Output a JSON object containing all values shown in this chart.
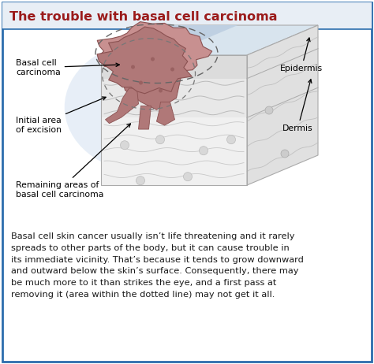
{
  "title": "The trouble with basal cell carcinoma",
  "title_color": "#9B1B1B",
  "title_fontsize": 11.5,
  "bg_color": "#FFFFFF",
  "border_color": "#2B6DAD",
  "body_text": "Basal cell skin cancer usually isn’t life threatening and it rarely\nspreads to other parts of the body, but it can cause trouble in\nits immediate vicinity. That’s because it tends to grow downward\nand outward below the skin’s surface. Consequently, there may\nbe much more to it than strikes the eye, and a first pass at\nremoving it (area within the dotted line) may not get it all.",
  "body_fontsize": 8.2,
  "label_fontsize": 7.8,
  "labels": {
    "basal_cell": "Basal cell\ncarcinoma",
    "initial_area": "Initial area\nof excision",
    "remaining": "Remaining areas of\nbasal cell carcinoma",
    "epidermis": "Epidermis",
    "dermis": "Dermis"
  },
  "tumor_color": "#B07878",
  "tumor_dark": "#8B5252",
  "tumor_light": "#C89090"
}
